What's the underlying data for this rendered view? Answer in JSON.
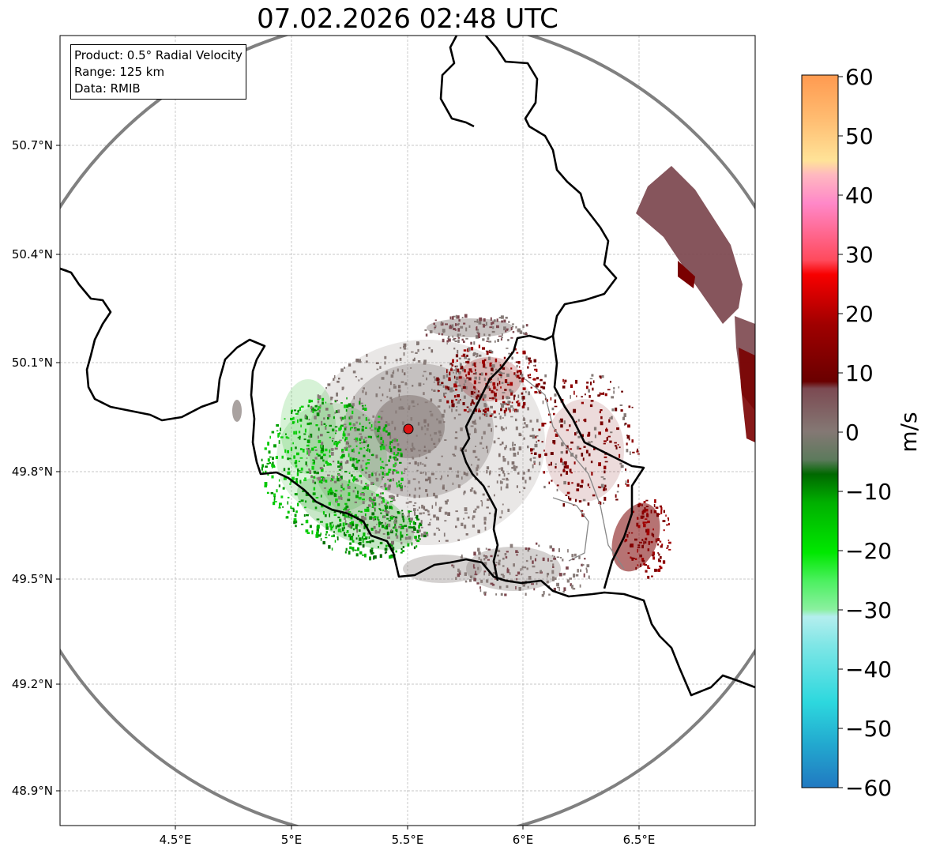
{
  "title": "07.02.2026 02:48 UTC",
  "info": {
    "product": "Product: 0.5° Radial Velocity",
    "range": "Range: 125 km",
    "source": "Data: RMIB"
  },
  "axes": {
    "x_ticks": [
      "4.5°E",
      "5°E",
      "5.5°E",
      "6°E",
      "6.5°E"
    ],
    "y_ticks": [
      "50.7°N",
      "50.4°N",
      "50.1°N",
      "49.8°N",
      "49.5°N",
      "49.2°N",
      "48.9°N"
    ]
  },
  "map": {
    "radar_site": {
      "lon": 5.5,
      "lat": 49.91
    },
    "range_km": 125,
    "lon_extent": [
      4.0,
      7.0
    ],
    "lat_extent": [
      48.8,
      51.0
    ]
  },
  "colorbar": {
    "label": "m/s",
    "ticks": [
      "60",
      "50",
      "40",
      "30",
      "20",
      "10",
      "0",
      "−10",
      "−20",
      "−30",
      "−40",
      "−50",
      "−60"
    ],
    "range": [
      -60,
      60
    ],
    "colors": [
      "#2179c1",
      "#22a2cc",
      "#2dd8de",
      "#48e0e0",
      "#6be6e6",
      "#8feaea",
      "#b4eeee",
      "#8bf0a0",
      "#50f060",
      "#10e810",
      "#00c800",
      "#00a000",
      "#006e00",
      "#5a7a5a",
      "#807070",
      "#805060",
      "#702828",
      "#6e0000",
      "#900000",
      "#b00000",
      "#d00000",
      "#f00000",
      "#ff5060",
      "#ff70a0",
      "#ff90c8",
      "#ffb8c0",
      "#ffe098",
      "#ffc070",
      "#ffa050"
    ]
  }
}
